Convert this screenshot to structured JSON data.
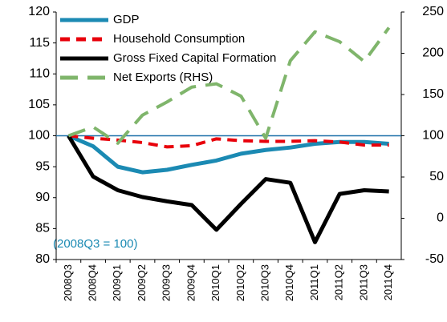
{
  "chart_data": {
    "type": "line",
    "categories": [
      "2008Q3",
      "2008Q4",
      "2009Q1",
      "2009Q2",
      "2009Q3",
      "2009Q4",
      "2010Q1",
      "2010Q2",
      "2010Q3",
      "2010Q4",
      "2011Q1",
      "2011Q2",
      "2011Q3",
      "2011Q4"
    ],
    "series": [
      {
        "name": "GDP",
        "color": "#1b8ab3",
        "values": [
          100,
          98.3,
          95,
          94.1,
          94.5,
          95.3,
          96,
          97.1,
          97.7,
          98.1,
          98.7,
          99,
          99,
          98.7
        ]
      },
      {
        "name": "Household Consumption",
        "color": "#e8000b",
        "dash": true,
        "values": [
          100,
          99.6,
          99.3,
          98.9,
          98.2,
          98.4,
          99.5,
          99.2,
          99.1,
          99.1,
          99.2,
          99.0,
          98.5,
          98.5
        ]
      },
      {
        "name": "Gross Fixed Capital Formation",
        "color": "#000000",
        "values": [
          100,
          93.4,
          91.2,
          90.1,
          89.4,
          88.8,
          84.8,
          89.0,
          93.0,
          92.4,
          82.8,
          90.6,
          91.2,
          91.0
        ]
      },
      {
        "name": "Net Exports (RHS)",
        "color": "#7fb56b",
        "dash": true,
        "axis": "y2",
        "values": [
          100,
          110.7,
          91,
          125,
          141,
          159,
          163,
          148,
          97,
          191,
          226,
          214,
          190,
          231
        ]
      }
    ],
    "ylim": [
      80,
      120
    ],
    "yticks": [
      80,
      85,
      90,
      95,
      100,
      105,
      110,
      115,
      120
    ],
    "y2lim": [
      -50,
      250
    ],
    "y2ticks": [
      -50,
      0,
      50,
      100,
      150,
      200,
      250
    ],
    "reference_line": {
      "value": 100,
      "color": "#1b6fa8"
    },
    "annotation": "(2008Q3 = 100)",
    "legend": "upper left"
  }
}
